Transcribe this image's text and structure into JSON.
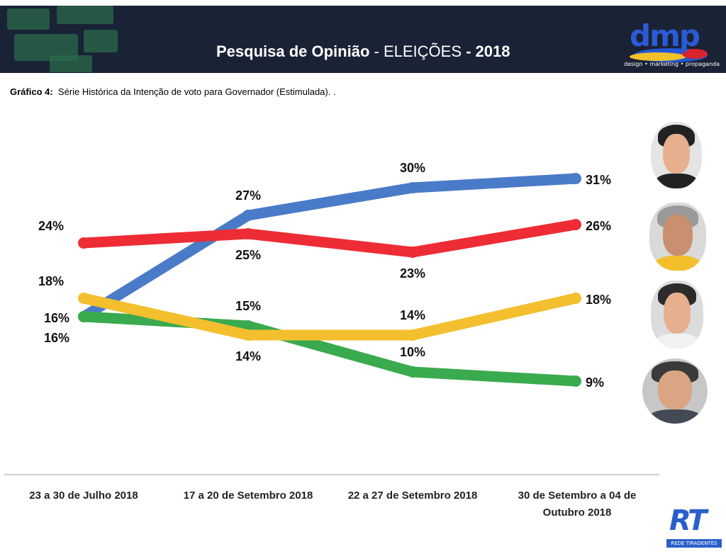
{
  "header": {
    "title_bold": "Pesquisa de Opinião",
    "title_sep": " - ",
    "title_light": "ELEIÇÕES",
    "title_year": " - 2018",
    "logo_word": "dmp",
    "logo_tagline": "design • marketing • propaganda"
  },
  "subtitle": {
    "label": "Gráfico 4:",
    "text": "Série Histórica da Intenção de voto para Governador (Estimulada). ."
  },
  "footer": {
    "rt_logo": "RT",
    "rt_tagline": "REDE TIRADENTES"
  },
  "chart_data": {
    "type": "line",
    "categories": [
      "23 a 30 de Julho 2018",
      "17 a 20 de Setembro 2018",
      "22 a 27 de Setembro 2018",
      "30 de Setembro a 04 de Outubro 2018"
    ],
    "category_lines": [
      [
        "23 a 30 de Julho 2018"
      ],
      [
        "17 a 20 de Setembro 2018"
      ],
      [
        "22 a 27 de Setembro 2018"
      ],
      [
        "30 de Setembro a 04 de",
        "Outubro 2018"
      ]
    ],
    "series": [
      {
        "color": "#4a7bc8",
        "values": [
          16,
          27,
          30,
          31
        ],
        "labels": [
          "16%",
          "27%",
          "30%",
          "31%"
        ],
        "label_pos": [
          "below-left",
          "above",
          "above",
          "right"
        ]
      },
      {
        "color": "#ee2c35",
        "values": [
          24,
          25,
          23,
          26
        ],
        "labels": [
          "24%",
          "25%",
          "23%",
          "26%"
        ],
        "label_pos": [
          "above-left",
          "below",
          "below",
          "right"
        ]
      },
      {
        "color": "#f3bf2e",
        "values": [
          18,
          14,
          14,
          18
        ],
        "labels": [
          "18%",
          "14%",
          "14%",
          "18%"
        ],
        "label_pos": [
          "above-left",
          "below",
          "above",
          "right"
        ]
      },
      {
        "color": "#3aaa4e",
        "values": [
          16,
          15,
          10,
          9
        ],
        "labels": [
          "16%",
          "15%",
          "10%",
          "9%"
        ],
        "label_pos": [
          "left",
          "above",
          "above",
          "right"
        ]
      }
    ],
    "ylim": [
      5,
      35
    ],
    "grid": false,
    "legend": "photos at right",
    "xlabel": "",
    "ylabel": ""
  }
}
